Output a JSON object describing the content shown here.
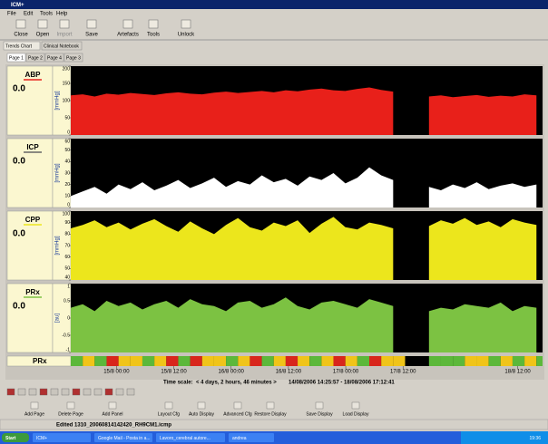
{
  "window": {
    "title": "ICM+",
    "menu": [
      "File",
      "Edit",
      "Tools",
      "Help"
    ],
    "toolbar": [
      "Close",
      "Open",
      "Import",
      "Save",
      "Artefacts",
      "Tools",
      "Unlock"
    ],
    "tabs": [
      "Trends Chart",
      "Clinical Notebook"
    ],
    "pages": [
      "Page 1",
      "Page 2",
      "Page 4",
      "Page 3"
    ]
  },
  "time_axis": {
    "xlim": [
      0,
      98.78
    ],
    "xticks": [
      {
        "value": 9.57,
        "label": "15/8 00:00"
      },
      {
        "value": 21.57,
        "label": "15/8 12:00"
      },
      {
        "value": 33.57,
        "label": "16/8 00:00"
      },
      {
        "value": 45.57,
        "label": "16/8 12:00"
      },
      {
        "value": 57.57,
        "label": "17/8 00:00"
      },
      {
        "value": 69.57,
        "label": "17/8 12:00"
      },
      {
        "value": 93.57,
        "label": "18/8 12:00"
      }
    ],
    "x": [
      0,
      2.5,
      5,
      7.5,
      10,
      12.5,
      15,
      17.5,
      20,
      22.5,
      25,
      27.5,
      30,
      32.5,
      35,
      37.5,
      40,
      42.5,
      45,
      47.5,
      50,
      52.5,
      55,
      57.5,
      60,
      62.5,
      65,
      67.5,
      70,
      72.5,
      75,
      77.5,
      80,
      82.5,
      85,
      87.5,
      90,
      92.5,
      95,
      97.5
    ],
    "scale_label": "Time scale:",
    "span": "< 4 days, 2 hours, 46 minutes >",
    "range": "14/08/2006 14:25:57 - 18/08/2006 17:12:41"
  },
  "chart_data": [
    {
      "type": "area",
      "title": "ABP",
      "current": "0.0",
      "y_label": "[mmHg]",
      "color": "#e8201a",
      "ylim": [
        0,
        200
      ],
      "yticks": [
        0,
        50,
        100,
        150,
        200
      ],
      "values": [
        115,
        118,
        112,
        120,
        117,
        122,
        119,
        116,
        121,
        124,
        120,
        118,
        123,
        126,
        122,
        125,
        128,
        124,
        130,
        127,
        132,
        135,
        130,
        128,
        134,
        138,
        131,
        126,
        null,
        null,
        112,
        115,
        110,
        113,
        116,
        111,
        114,
        112,
        118,
        115
      ]
    },
    {
      "type": "area",
      "title": "ICP",
      "current": "0.0",
      "y_label": "[mmHg]",
      "color": "#ffffff",
      "ylim": [
        0,
        60
      ],
      "yticks": [
        0,
        10,
        20,
        30,
        40,
        50,
        60
      ],
      "values": [
        10,
        14,
        18,
        12,
        20,
        16,
        22,
        15,
        19,
        24,
        17,
        21,
        26,
        18,
        23,
        20,
        28,
        22,
        25,
        19,
        27,
        24,
        30,
        21,
        26,
        35,
        28,
        24,
        null,
        null,
        18,
        15,
        20,
        17,
        22,
        16,
        19,
        21,
        18,
        20
      ]
    },
    {
      "type": "area",
      "title": "CPP",
      "current": "0.0",
      "y_label": "[mmHg]",
      "color": "#ece61c",
      "ylim": [
        40,
        100
      ],
      "yticks": [
        40,
        50,
        60,
        70,
        80,
        90,
        100
      ],
      "values": [
        85,
        88,
        92,
        86,
        90,
        84,
        89,
        93,
        87,
        82,
        91,
        85,
        80,
        88,
        94,
        86,
        83,
        90,
        87,
        92,
        81,
        89,
        95,
        86,
        84,
        90,
        88,
        85,
        null,
        null,
        87,
        92,
        89,
        94,
        88,
        91,
        86,
        93,
        90,
        88
      ]
    },
    {
      "type": "area",
      "title": "PRx",
      "current": "0.0",
      "y_label": "[au]",
      "color": "#7cc242",
      "ylim": [
        -1,
        1
      ],
      "yticks": [
        -1,
        -0.5,
        0,
        0.5,
        1
      ],
      "values": [
        0.3,
        0.4,
        0.2,
        0.5,
        0.35,
        0.45,
        0.25,
        0.4,
        0.5,
        0.3,
        0.55,
        0.4,
        0.35,
        0.2,
        0.45,
        0.5,
        0.3,
        0.4,
        0.6,
        0.35,
        0.25,
        0.45,
        0.5,
        0.4,
        0.3,
        0.55,
        0.45,
        0.35,
        null,
        null,
        0.2,
        0.3,
        0.25,
        0.4,
        0.35,
        0.3,
        0.45,
        0.2,
        0.35,
        0.3
      ]
    }
  ],
  "strip": {
    "label": "PRx"
  },
  "panel_buttons": [
    "Add Page",
    "Delete Page",
    "Add Panel",
    "Layout Cfg",
    "Auto Display",
    "Advanced Cfg",
    "Restore Display",
    "Save Display",
    "Load Display"
  ],
  "status": "Edited 1310_20060814142420_RH9CM1.icmp",
  "taskbar": [
    "Start",
    "ICM+",
    "Google Mail - Posta in a...",
    "Lavoro_cerebral autore...",
    "andrea"
  ],
  "clock": "19:36"
}
